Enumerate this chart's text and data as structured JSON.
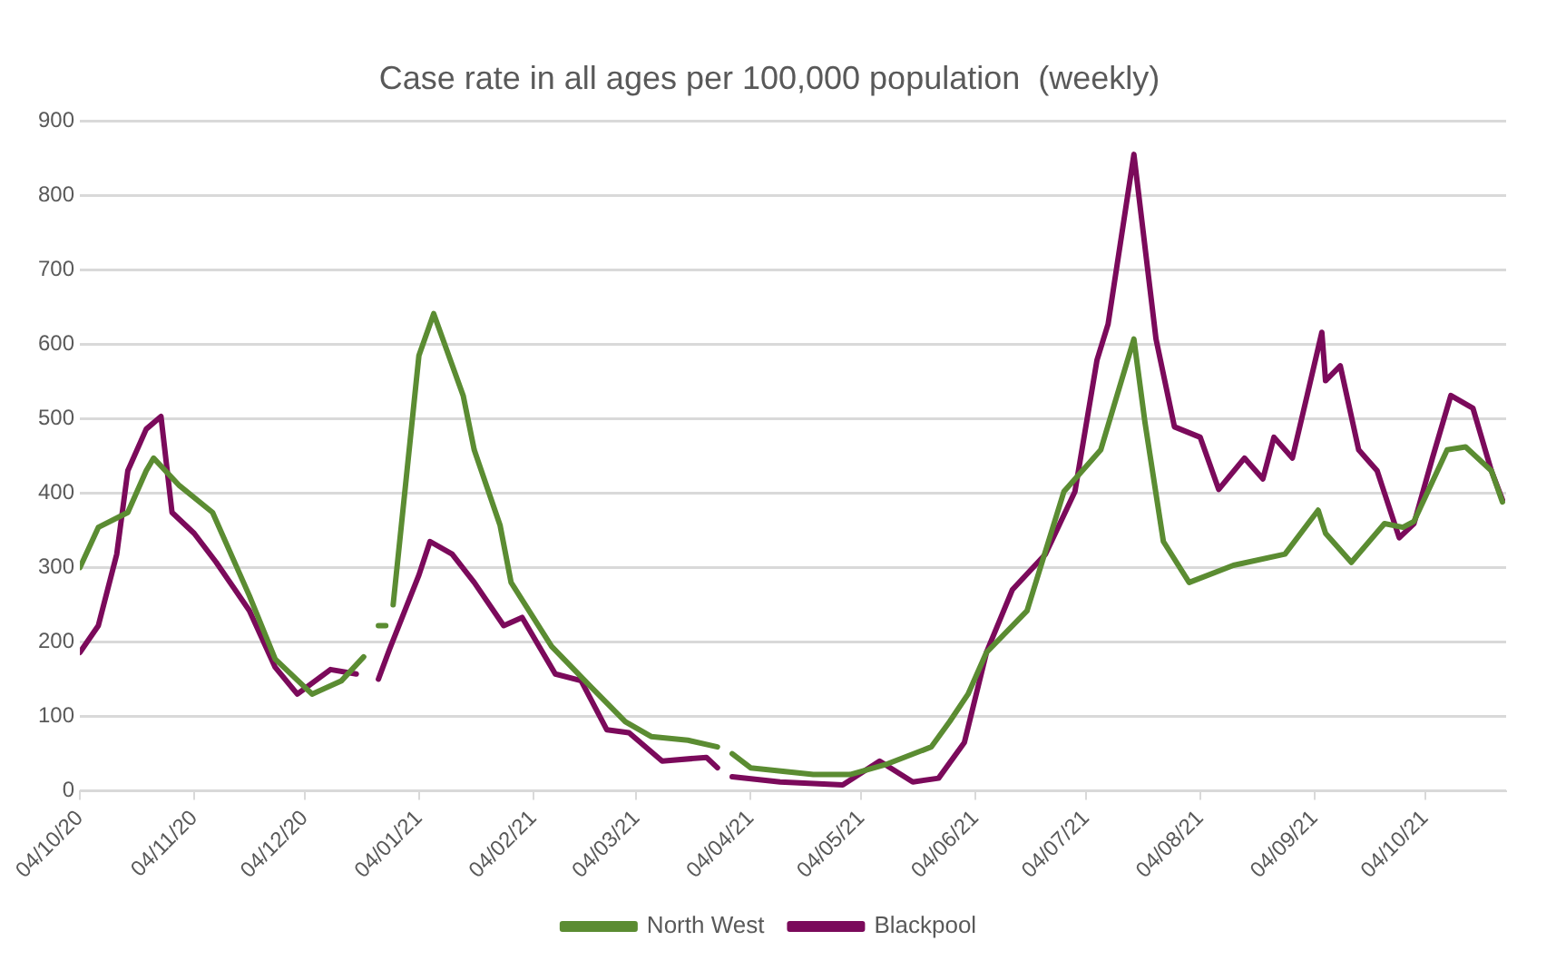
{
  "chart_data": {
    "type": "line",
    "title": "Case rate in all ages per 100,000 population  (weekly)",
    "xlim": [
      "2020-10-04",
      "2021-10-26"
    ],
    "xticks": [
      {
        "value": "2020-10-04",
        "label": "04/10/20"
      },
      {
        "value": "2020-11-04",
        "label": "04/11/20"
      },
      {
        "value": "2020-12-04",
        "label": "04/12/20"
      },
      {
        "value": "2021-01-04",
        "label": "04/01/21"
      },
      {
        "value": "2021-02-04",
        "label": "04/02/21"
      },
      {
        "value": "2021-03-04",
        "label": "04/03/21"
      },
      {
        "value": "2021-04-04",
        "label": "04/04/21"
      },
      {
        "value": "2021-05-04",
        "label": "04/05/21"
      },
      {
        "value": "2021-06-04",
        "label": "04/06/21"
      },
      {
        "value": "2021-07-04",
        "label": "04/07/21"
      },
      {
        "value": "2021-08-04",
        "label": "04/08/21"
      },
      {
        "value": "2021-09-04",
        "label": "04/09/21"
      },
      {
        "value": "2021-10-04",
        "label": "04/10/21"
      }
    ],
    "ylim": [
      0,
      900
    ],
    "yticks": [
      0,
      100,
      200,
      300,
      400,
      500,
      600,
      700,
      800,
      900
    ],
    "grid": "y",
    "legend": "bottom",
    "marker": "none",
    "line_style": "solid",
    "series": [
      {
        "name": "North West",
        "color": "#5b8c32",
        "x": [
          "2020-10-04",
          "2020-10-09",
          "2020-10-17",
          "2020-10-22",
          "2020-10-24",
          "2020-10-31",
          "2020-11-09",
          "2020-11-19",
          "2020-11-26",
          "2020-12-06",
          "2020-12-14",
          "2020-12-20",
          "2020-12-22",
          "2020-12-24",
          "2020-12-26",
          "2020-12-27",
          "2020-12-28",
          "2021-01-04",
          "2021-01-08",
          "2021-01-16",
          "2021-01-19",
          "2021-01-26",
          "2021-01-29",
          "2021-02-09",
          "2021-02-20",
          "2021-03-01",
          "2021-03-08",
          "2021-03-18",
          "2021-03-26",
          "2021-03-28",
          "2021-03-30",
          "2021-04-04",
          "2021-04-21",
          "2021-05-01",
          "2021-05-11",
          "2021-05-23",
          "2021-05-28",
          "2021-06-02",
          "2021-06-07",
          "2021-06-18",
          "2021-06-28",
          "2021-07-08",
          "2021-07-17",
          "2021-07-20",
          "2021-07-25",
          "2021-08-01",
          "2021-08-13",
          "2021-08-27",
          "2021-09-05",
          "2021-09-07",
          "2021-09-14",
          "2021-09-23",
          "2021-09-28",
          "2021-10-01",
          "2021-10-10",
          "2021-10-15",
          "2021-10-22",
          "2021-10-25"
        ],
        "values": [
          300,
          354,
          374,
          430,
          447,
          410,
          374,
          262,
          177,
          130,
          148,
          180,
          null,
          222,
          222,
          null,
          250,
          585,
          641,
          531,
          458,
          357,
          280,
          194,
          138,
          93,
          73,
          68,
          59,
          null,
          50,
          31,
          22,
          22,
          36,
          59,
          93,
          130,
          186,
          242,
          402,
          458,
          607,
          495,
          335,
          280,
          303,
          318,
          377,
          346,
          307,
          359,
          354,
          362,
          458,
          462,
          430,
          388
        ]
      },
      {
        "name": "Blackpool",
        "color": "#7b0a5b",
        "x": [
          "2020-10-04",
          "2020-10-09",
          "2020-10-14",
          "2020-10-17",
          "2020-10-22",
          "2020-10-26",
          "2020-10-29",
          "2020-11-04",
          "2020-11-10",
          "2020-11-19",
          "2020-11-26",
          "2020-12-02",
          "2020-12-11",
          "2020-12-18",
          "2020-12-21",
          "2020-12-24",
          "2020-12-27",
          "2021-01-04",
          "2021-01-07",
          "2021-01-13",
          "2021-01-19",
          "2021-01-27",
          "2021-02-01",
          "2021-02-10",
          "2021-02-17",
          "2021-02-24",
          "2021-03-02",
          "2021-03-11",
          "2021-03-23",
          "2021-03-26",
          "2021-03-28",
          "2021-03-30",
          "2021-04-12",
          "2021-04-29",
          "2021-05-09",
          "2021-05-18",
          "2021-05-25",
          "2021-06-01",
          "2021-06-07",
          "2021-06-14",
          "2021-06-23",
          "2021-07-01",
          "2021-07-07",
          "2021-07-10",
          "2021-07-17",
          "2021-07-23",
          "2021-07-28",
          "2021-08-04",
          "2021-08-09",
          "2021-08-16",
          "2021-08-21",
          "2021-08-24",
          "2021-08-29",
          "2021-09-02",
          "2021-09-06",
          "2021-09-07",
          "2021-09-11",
          "2021-09-16",
          "2021-09-21",
          "2021-09-27",
          "2021-10-01",
          "2021-10-06",
          "2021-10-11",
          "2021-10-17",
          "2021-10-22",
          "2021-10-25"
        ],
        "values": [
          186,
          222,
          318,
          430,
          486,
          503,
          374,
          346,
          307,
          242,
          166,
          130,
          163,
          157,
          null,
          150,
          190,
          290,
          335,
          318,
          280,
          222,
          233,
          157,
          148,
          82,
          78,
          40,
          45,
          31,
          null,
          19,
          12,
          8,
          40,
          12,
          17,
          65,
          186,
          270,
          318,
          402,
          579,
          627,
          855,
          607,
          489,
          475,
          405,
          447,
          419,
          475,
          447,
          531,
          616,
          551,
          571,
          458,
          430,
          340,
          359,
          447,
          531,
          514,
          430,
          391
        ]
      }
    ]
  }
}
